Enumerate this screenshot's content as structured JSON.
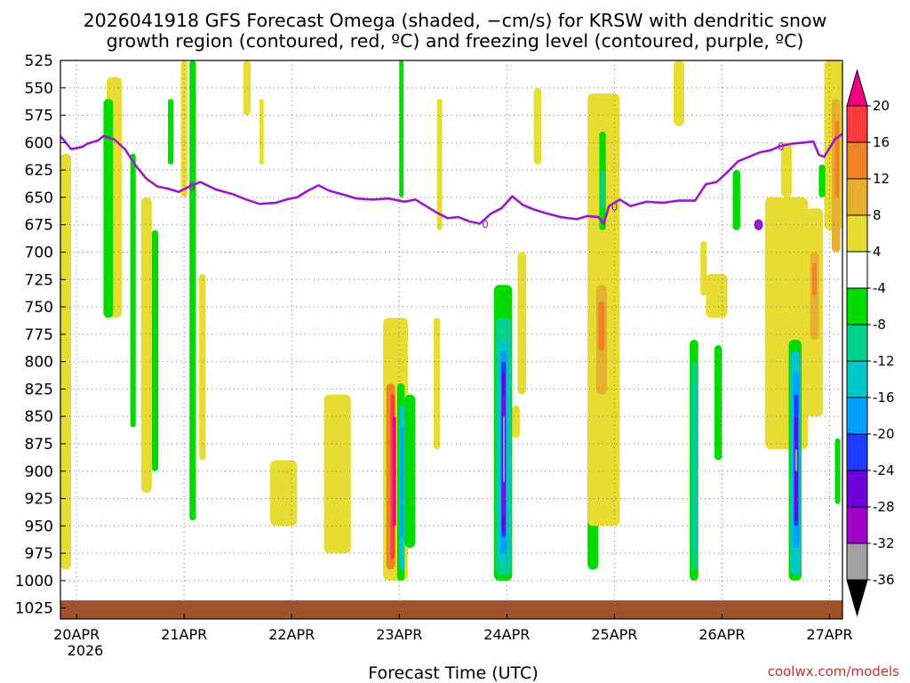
{
  "chart_data": {
    "type": "heatmap",
    "title_line1": "2026041918 GFS Forecast Omega (shaded, −cm/s) for KRSW with dendritic snow",
    "title_line2": "growth region (contoured, red, ºC) and freezing level (contoured, purple, ºC)",
    "xlabel": "Forecast Time (UTC)",
    "credit": "coolwx.com/models",
    "year_label": "2026",
    "x_range_days": [
      -0.15,
      7.12
    ],
    "y_range_hpa": [
      525,
      1035
    ],
    "x_ticks": [
      {
        "day": 0,
        "label": "20APR"
      },
      {
        "day": 1,
        "label": "21APR"
      },
      {
        "day": 2,
        "label": "22APR"
      },
      {
        "day": 3,
        "label": "23APR"
      },
      {
        "day": 4,
        "label": "24APR"
      },
      {
        "day": 5,
        "label": "25APR"
      },
      {
        "day": 6,
        "label": "26APR"
      },
      {
        "day": 7,
        "label": "27APR"
      }
    ],
    "y_ticks": [
      525,
      550,
      575,
      600,
      625,
      650,
      675,
      700,
      725,
      750,
      775,
      800,
      825,
      850,
      875,
      900,
      925,
      950,
      975,
      1000,
      1025
    ],
    "colorbar": {
      "levels": [
        "-36",
        "-32",
        "-28",
        "-24",
        "-20",
        "-16",
        "-12",
        "-8",
        "-4",
        "4",
        "8",
        "12",
        "16",
        "20"
      ],
      "colors": [
        "#000000",
        "#a0a0a0",
        "#a000c8",
        "#6e00dc",
        "#1e3cff",
        "#00a0ff",
        "#00c8c8",
        "#00d28c",
        "#00dc00",
        "#ffffff",
        "#e6dc32",
        "#e6af2d",
        "#f08228",
        "#fa3c3c",
        "#f00082"
      ],
      "color_meaning": [
        "< -36",
        "-36 to -32",
        "-32 to -28",
        "-28 to -24",
        "-24 to -20",
        "-20 to -16",
        "-16 to -12",
        "-12 to -8",
        "-8 to -4",
        "-4 to 4",
        "4 to 8",
        "8 to 12",
        "12 to 16",
        "16 to 20",
        "> 20"
      ]
    },
    "freezing_level": {
      "color": "#9b19c8",
      "contour_label": "0",
      "points": [
        [
          -0.15,
          594
        ],
        [
          -0.05,
          606
        ],
        [
          0.05,
          604
        ],
        [
          0.1,
          601
        ],
        [
          0.2,
          598
        ],
        [
          0.25,
          594
        ],
        [
          0.35,
          597
        ],
        [
          0.45,
          606
        ],
        [
          0.55,
          621
        ],
        [
          0.65,
          633
        ],
        [
          0.75,
          640
        ],
        [
          0.85,
          642
        ],
        [
          0.95,
          645
        ],
        [
          1.05,
          640
        ],
        [
          1.15,
          636
        ],
        [
          1.3,
          643
        ],
        [
          1.45,
          647
        ],
        [
          1.55,
          651
        ],
        [
          1.7,
          656
        ],
        [
          1.85,
          655
        ],
        [
          1.95,
          652
        ],
        [
          2.05,
          650
        ],
        [
          2.15,
          644
        ],
        [
          2.25,
          639
        ],
        [
          2.35,
          644
        ],
        [
          2.5,
          648
        ],
        [
          2.6,
          651
        ],
        [
          2.75,
          652
        ],
        [
          2.9,
          651
        ],
        [
          3.05,
          654
        ],
        [
          3.15,
          652
        ],
        [
          3.25,
          658
        ],
        [
          3.35,
          664
        ],
        [
          3.45,
          669
        ],
        [
          3.55,
          668
        ],
        [
          3.65,
          672
        ],
        [
          3.75,
          674
        ],
        [
          3.85,
          665
        ],
        [
          3.95,
          660
        ],
        [
          4.05,
          649
        ],
        [
          4.15,
          657
        ],
        [
          4.25,
          661
        ],
        [
          4.35,
          664
        ],
        [
          4.5,
          668
        ],
        [
          4.65,
          670
        ],
        [
          4.75,
          667
        ],
        [
          4.85,
          668
        ],
        [
          4.9,
          674
        ],
        [
          4.95,
          658
        ],
        [
          5.05,
          652
        ],
        [
          5.15,
          658
        ],
        [
          5.3,
          654
        ],
        [
          5.45,
          655
        ],
        [
          5.6,
          653
        ],
        [
          5.75,
          653
        ],
        [
          5.85,
          638
        ],
        [
          5.95,
          636
        ],
        [
          6.05,
          627
        ],
        [
          6.15,
          617
        ],
        [
          6.25,
          613
        ],
        [
          6.35,
          609
        ],
        [
          6.45,
          607
        ],
        [
          6.55,
          603
        ],
        [
          6.65,
          601
        ],
        [
          6.75,
          600
        ],
        [
          6.85,
          599
        ],
        [
          6.9,
          611
        ],
        [
          6.95,
          613
        ],
        [
          7.05,
          597
        ],
        [
          7.12,
          592
        ]
      ]
    },
    "surface_color": "#a0522d",
    "omega_cells": [
      {
        "d0": -0.15,
        "d1": -0.05,
        "p0": 610,
        "p1": 990,
        "color": "#e6dc32"
      },
      {
        "d0": 0.28,
        "d1": 0.42,
        "p0": 540,
        "p1": 760,
        "color": "#e6dc32"
      },
      {
        "d0": 0.25,
        "d1": 0.34,
        "p0": 560,
        "p1": 760,
        "color": "#00dc00"
      },
      {
        "d0": 0.5,
        "d1": 0.55,
        "p0": 610,
        "p1": 860,
        "color": "#00dc00"
      },
      {
        "d0": 0.6,
        "d1": 0.7,
        "p0": 650,
        "p1": 920,
        "color": "#e6dc32"
      },
      {
        "d0": 0.7,
        "d1": 0.76,
        "p0": 680,
        "p1": 900,
        "color": "#00dc00"
      },
      {
        "d0": 0.97,
        "d1": 1.03,
        "p0": 525,
        "p1": 650,
        "color": "#e6dc32"
      },
      {
        "d0": 1.05,
        "d1": 1.11,
        "p0": 525,
        "p1": 945,
        "color": "#00dc00"
      },
      {
        "d0": 1.14,
        "d1": 1.2,
        "p0": 720,
        "p1": 890,
        "color": "#e6dc32"
      },
      {
        "d0": 0.85,
        "d1": 0.9,
        "p0": 560,
        "p1": 620,
        "color": "#00dc00"
      },
      {
        "d0": 1.55,
        "d1": 1.62,
        "p0": 525,
        "p1": 575,
        "color": "#e6dc32"
      },
      {
        "d0": 1.7,
        "d1": 1.74,
        "p0": 560,
        "p1": 620,
        "color": "#e6dc32"
      },
      {
        "d0": 2.3,
        "d1": 2.55,
        "p0": 830,
        "p1": 975,
        "color": "#e6dc32"
      },
      {
        "d0": 1.8,
        "d1": 2.05,
        "p0": 890,
        "p1": 950,
        "color": "#e6dc32"
      },
      {
        "d0": 2.85,
        "d1": 3.08,
        "p0": 760,
        "p1": 1000,
        "color": "#e6dc32"
      },
      {
        "d0": 2.88,
        "d1": 2.96,
        "p0": 820,
        "p1": 990,
        "color": "#f08228"
      },
      {
        "d0": 2.92,
        "d1": 2.96,
        "p0": 830,
        "p1": 980,
        "color": "#fa3c3c"
      },
      {
        "d0": 2.94,
        "d1": 2.97,
        "p0": 850,
        "p1": 950,
        "color": "#f00082"
      },
      {
        "d0": 2.98,
        "d1": 3.05,
        "p0": 820,
        "p1": 1000,
        "color": "#00dc00"
      },
      {
        "d0": 3.0,
        "d1": 3.05,
        "p0": 840,
        "p1": 990,
        "color": "#00c8c8"
      },
      {
        "d0": 3.01,
        "d1": 3.04,
        "p0": 860,
        "p1": 960,
        "color": "#00a0ff"
      },
      {
        "d0": 3.05,
        "d1": 3.15,
        "p0": 830,
        "p1": 970,
        "color": "#00dc00"
      },
      {
        "d0": 3.0,
        "d1": 3.04,
        "p0": 525,
        "p1": 650,
        "color": "#00dc00"
      },
      {
        "d0": 3.35,
        "d1": 3.4,
        "p0": 560,
        "p1": 680,
        "color": "#e6dc32"
      },
      {
        "d0": 3.32,
        "d1": 3.38,
        "p0": 760,
        "p1": 880,
        "color": "#e6dc32"
      },
      {
        "d0": 3.88,
        "d1": 4.05,
        "p0": 730,
        "p1": 1000,
        "color": "#00dc00"
      },
      {
        "d0": 3.9,
        "d1": 4.04,
        "p0": 760,
        "p1": 995,
        "color": "#00d28c"
      },
      {
        "d0": 3.92,
        "d1": 4.02,
        "p0": 780,
        "p1": 985,
        "color": "#00c8c8"
      },
      {
        "d0": 3.94,
        "d1": 4.0,
        "p0": 790,
        "p1": 975,
        "color": "#00a0ff"
      },
      {
        "d0": 3.95,
        "d1": 3.99,
        "p0": 800,
        "p1": 960,
        "color": "#1e3cff"
      },
      {
        "d0": 3.955,
        "d1": 3.985,
        "p0": 810,
        "p1": 955,
        "color": "#6e00dc"
      },
      {
        "d0": 3.96,
        "d1": 3.98,
        "p0": 830,
        "p1": 940,
        "color": "#a000c8"
      },
      {
        "d0": 3.965,
        "d1": 3.98,
        "p0": 850,
        "p1": 910,
        "color": "#a0a0a0"
      },
      {
        "d0": 4.05,
        "d1": 4.12,
        "p0": 840,
        "p1": 870,
        "color": "#e6dc32"
      },
      {
        "d0": 4.1,
        "d1": 4.18,
        "p0": 700,
        "p1": 830,
        "color": "#e6dc32"
      },
      {
        "d0": 4.25,
        "d1": 4.32,
        "p0": 550,
        "p1": 620,
        "color": "#e6dc32"
      },
      {
        "d0": 4.75,
        "d1": 4.85,
        "p0": 845,
        "p1": 990,
        "color": "#00dc00"
      },
      {
        "d0": 4.75,
        "d1": 5.05,
        "p0": 555,
        "p1": 950,
        "color": "#e6dc32"
      },
      {
        "d0": 4.83,
        "d1": 4.93,
        "p0": 730,
        "p1": 830,
        "color": "#e6af2d"
      },
      {
        "d0": 4.85,
        "d1": 4.91,
        "p0": 745,
        "p1": 790,
        "color": "#f08228"
      },
      {
        "d0": 4.86,
        "d1": 4.92,
        "p0": 590,
        "p1": 680,
        "color": "#00dc00"
      },
      {
        "d0": 4.87,
        "d1": 4.91,
        "p0": 625,
        "p1": 660,
        "color": "#00d28c"
      },
      {
        "d0": 5.7,
        "d1": 5.78,
        "p0": 780,
        "p1": 1000,
        "color": "#00dc00"
      },
      {
        "d0": 5.72,
        "d1": 5.77,
        "p0": 800,
        "p1": 990,
        "color": "#00d28c"
      },
      {
        "d0": 5.73,
        "d1": 5.76,
        "p0": 820,
        "p1": 975,
        "color": "#00c8c8"
      },
      {
        "d0": 5.8,
        "d1": 5.86,
        "p0": 690,
        "p1": 740,
        "color": "#e6dc32"
      },
      {
        "d0": 5.93,
        "d1": 6.0,
        "p0": 785,
        "p1": 890,
        "color": "#00dc00"
      },
      {
        "d0": 5.85,
        "d1": 6.05,
        "p0": 720,
        "p1": 760,
        "color": "#e6dc32"
      },
      {
        "d0": 6.1,
        "d1": 6.17,
        "p0": 625,
        "p1": 680,
        "color": "#00dc00"
      },
      {
        "d0": 5.55,
        "d1": 5.65,
        "p0": 525,
        "p1": 585,
        "color": "#e6dc32"
      },
      {
        "d0": 6.4,
        "d1": 6.8,
        "p0": 650,
        "p1": 880,
        "color": "#e6dc32"
      },
      {
        "d0": 6.55,
        "d1": 6.65,
        "p0": 600,
        "p1": 650,
        "color": "#e6dc32"
      },
      {
        "d0": 6.62,
        "d1": 6.74,
        "p0": 780,
        "p1": 1000,
        "color": "#00dc00"
      },
      {
        "d0": 6.64,
        "d1": 6.73,
        "p0": 790,
        "p1": 995,
        "color": "#00c8c8"
      },
      {
        "d0": 6.66,
        "d1": 6.72,
        "p0": 810,
        "p1": 970,
        "color": "#00a0ff"
      },
      {
        "d0": 6.67,
        "d1": 6.71,
        "p0": 830,
        "p1": 950,
        "color": "#1e3cff"
      },
      {
        "d0": 6.675,
        "d1": 6.705,
        "p0": 850,
        "p1": 945,
        "color": "#6e00dc"
      },
      {
        "d0": 6.68,
        "d1": 6.7,
        "p0": 880,
        "p1": 900,
        "color": "#a0a0a0"
      },
      {
        "d0": 6.78,
        "d1": 6.94,
        "p0": 660,
        "p1": 850,
        "color": "#e6dc32"
      },
      {
        "d0": 6.82,
        "d1": 6.9,
        "p0": 700,
        "p1": 780,
        "color": "#e6af2d"
      },
      {
        "d0": 6.84,
        "d1": 6.88,
        "p0": 710,
        "p1": 740,
        "color": "#f08228"
      },
      {
        "d0": 6.95,
        "d1": 7.12,
        "p0": 525,
        "p1": 680,
        "color": "#e6dc32"
      },
      {
        "d0": 7.02,
        "d1": 7.1,
        "p0": 560,
        "p1": 700,
        "color": "#e6af2d"
      },
      {
        "d0": 7.05,
        "d1": 7.09,
        "p0": 580,
        "p1": 650,
        "color": "#f08228"
      },
      {
        "d0": 7.05,
        "d1": 7.1,
        "p0": 870,
        "p1": 930,
        "color": "#00dc00"
      },
      {
        "d0": 6.9,
        "d1": 6.96,
        "p0": 620,
        "p1": 650,
        "color": "#00dc00"
      },
      {
        "d0": 6.3,
        "d1": 6.38,
        "p0": 670,
        "p1": 680,
        "color": "#9b19c8"
      }
    ]
  }
}
